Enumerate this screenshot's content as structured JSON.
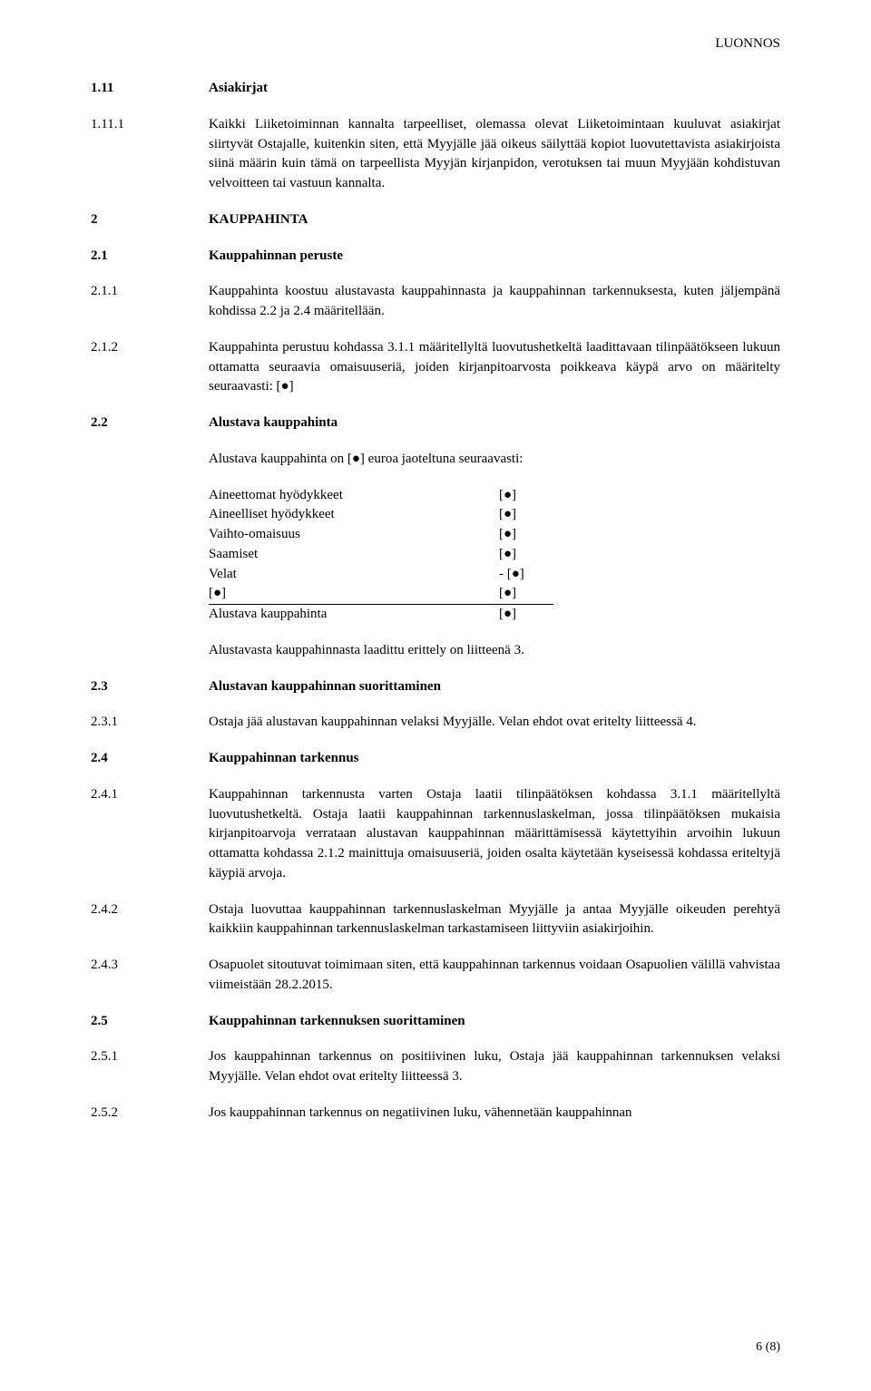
{
  "header": {
    "draft_label": "LUONNOS"
  },
  "s1_11": {
    "num": "1.11",
    "title": "Asiakirjat"
  },
  "s1_11_1": {
    "num": "1.11.1",
    "text": "Kaikki Liiketoiminnan kannalta tarpeelliset, olemassa olevat Liiketoimintaan kuuluvat asiakirjat siirtyvät Ostajalle, kuitenkin siten, että Myyjälle jää oikeus säilyttää kopiot luovutettavista asiakirjoista siinä määrin kuin tämä on tarpeellista Myyjän kirjanpidon, verotuksen tai muun Myyjään kohdistuvan velvoitteen tai vastuun kannalta."
  },
  "s2": {
    "num": "2",
    "title": "KAUPPAHINTA"
  },
  "s2_1": {
    "num": "2.1",
    "title": "Kauppahinnan peruste"
  },
  "s2_1_1": {
    "num": "2.1.1",
    "text": "Kauppahinta koostuu alustavasta kauppahinnasta ja kauppahinnan tarkennuksesta, kuten jäljempänä kohdissa 2.2 ja 2.4 määritellään."
  },
  "s2_1_2": {
    "num": "2.1.2",
    "text": "Kauppahinta perustuu kohdassa 3.1.1 määritellyltä luovutushetkeltä laadittavaan tilinpäätökseen lukuun ottamatta seuraavia omaisuuseriä, joiden kirjanpitoarvosta poikkeava käypä arvo on määritelty seuraavasti: [●]"
  },
  "s2_2": {
    "num": "2.2",
    "title": "Alustava kauppahinta",
    "intro": "Alustava kauppahinta on [●] euroa jaoteltuna seuraavasti:",
    "rows": [
      {
        "label": "Aineettomat hyödykkeet",
        "val": "[●]"
      },
      {
        "label": "Aineelliset hyödykkeet",
        "val": "[●]"
      },
      {
        "label": "Vaihto-omaisuus",
        "val": "[●]"
      },
      {
        "label": "Saamiset",
        "val": "[●]"
      },
      {
        "label": "Velat",
        "val": "- [●]"
      },
      {
        "label": "[●]",
        "val": "[●]",
        "underline": true
      },
      {
        "label": "Alustava kauppahinta",
        "val": "[●]"
      }
    ],
    "outro": "Alustavasta kauppahinnasta laadittu erittely on liitteenä 3."
  },
  "s2_3": {
    "num": "2.3",
    "title": "Alustavan kauppahinnan suorittaminen"
  },
  "s2_3_1": {
    "num": "2.3.1",
    "text": "Ostaja jää alustavan kauppahinnan velaksi Myyjälle. Velan ehdot ovat eritelty liitteessä 4."
  },
  "s2_4": {
    "num": "2.4",
    "title": "Kauppahinnan tarkennus"
  },
  "s2_4_1": {
    "num": "2.4.1",
    "text": "Kauppahinnan tarkennusta varten Ostaja laatii tilinpäätöksen kohdassa 3.1.1 määritellyltä luovutushetkeltä. Ostaja laatii kauppahinnan tarkennuslaskelman, jossa tilinpäätöksen mukaisia kirjanpitoarvoja verrataan alustavan kauppahinnan määrittämisessä käytettyihin arvoihin lukuun ottamatta kohdassa 2.1.2 mainittuja omaisuuseriä, joiden osalta käytetään kyseisessä kohdassa eriteltyjä käypiä arvoja."
  },
  "s2_4_2": {
    "num": "2.4.2",
    "text": "Ostaja luovuttaa kauppahinnan tarkennuslaskelman Myyjälle ja antaa Myyjälle oikeuden perehtyä kaikkiin kauppahinnan tarkennuslaskelman tarkastamiseen liittyviin asiakirjoihin."
  },
  "s2_4_3": {
    "num": "2.4.3",
    "text": "Osapuolet sitoutuvat toimimaan siten, että kauppahinnan tarkennus voidaan Osapuolien välillä vahvistaa viimeistään 28.2.2015."
  },
  "s2_5": {
    "num": "2.5",
    "title": "Kauppahinnan tarkennuksen suorittaminen"
  },
  "s2_5_1": {
    "num": "2.5.1",
    "text": "Jos kauppahinnan tarkennus on positiivinen luku, Ostaja jää kauppahinnan tarkennuksen velaksi Myyjälle. Velan ehdot ovat eritelty liitteessä 3."
  },
  "s2_5_2": {
    "num": "2.5.2",
    "text": "Jos kauppahinnan tarkennus on negatiivinen luku, vähennetään kauppahinnan"
  },
  "footer": {
    "page": "6 (8)"
  }
}
